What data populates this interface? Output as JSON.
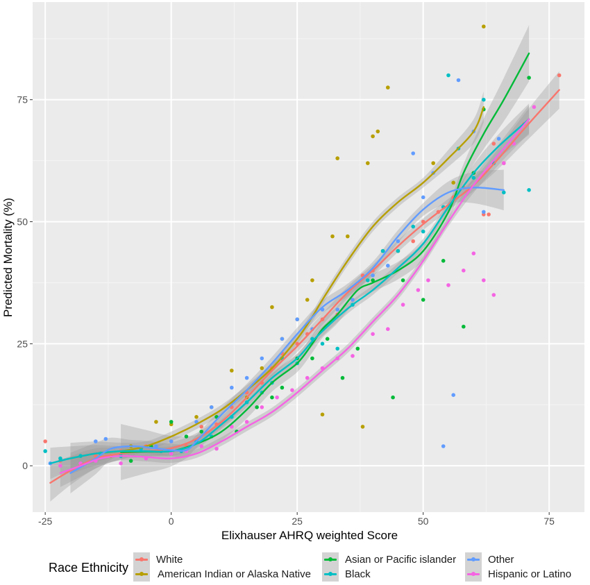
{
  "chart_data": {
    "type": "scatter",
    "subtype": "scatter with loess smoothing lines and confidence bands",
    "title": "",
    "xlabel": "Elixhauser AHRQ weighted Score",
    "ylabel": "Predicted Mortality (%)",
    "xlim": [
      -27.5,
      82
    ],
    "ylim": [
      -9.5,
      95
    ],
    "x_ticks": [
      -25,
      0,
      25,
      50,
      75
    ],
    "x_tick_labels": [
      "-25",
      "0",
      "25",
      "50",
      "75"
    ],
    "y_ticks": [
      0,
      25,
      50,
      75
    ],
    "y_tick_labels": [
      "0",
      "25",
      "50",
      "75"
    ],
    "grid": true,
    "background": "#ebebeb",
    "legend": {
      "title": "Race Ethnicity",
      "position": "bottom"
    },
    "series": [
      {
        "name": "White",
        "color": "#F8766D",
        "smooth": [
          [
            -24,
            -3.5
          ],
          [
            -20,
            -1
          ],
          [
            -15,
            1.5
          ],
          [
            -10,
            2.5
          ],
          [
            -5,
            3
          ],
          [
            0,
            3.6
          ],
          [
            5,
            5.5
          ],
          [
            10,
            9
          ],
          [
            15,
            14
          ],
          [
            20,
            19.5
          ],
          [
            25,
            24.5
          ],
          [
            30,
            30
          ],
          [
            35,
            35.5
          ],
          [
            40,
            40
          ],
          [
            45,
            45
          ],
          [
            50,
            49.5
          ],
          [
            55,
            53.5
          ],
          [
            60,
            57.5
          ],
          [
            65,
            63
          ],
          [
            70,
            69
          ],
          [
            77,
            77
          ]
        ],
        "band": 1.2,
        "points": [
          [
            -25,
            5
          ],
          [
            -22,
            1
          ],
          [
            -15,
            2
          ],
          [
            -10,
            3
          ],
          [
            -5,
            4
          ],
          [
            0,
            5
          ],
          [
            3,
            4
          ],
          [
            6,
            8
          ],
          [
            9,
            8.5
          ],
          [
            12,
            12
          ],
          [
            15,
            15
          ],
          [
            18,
            17
          ],
          [
            20,
            20
          ],
          [
            22,
            23
          ],
          [
            25,
            25
          ],
          [
            27,
            27
          ],
          [
            30,
            30
          ],
          [
            33,
            31
          ],
          [
            36,
            34
          ],
          [
            38,
            39
          ],
          [
            40,
            40
          ],
          [
            42,
            44
          ],
          [
            45,
            44
          ],
          [
            48,
            46
          ],
          [
            50,
            50
          ],
          [
            53,
            52
          ],
          [
            56,
            55
          ],
          [
            58,
            57
          ],
          [
            60,
            60
          ],
          [
            62,
            51.5
          ],
          [
            63,
            51.5
          ],
          [
            64,
            66
          ],
          [
            66,
            62
          ],
          [
            70,
            70
          ],
          [
            77,
            80
          ]
        ]
      },
      {
        "name": "American Indian or Alaska Native",
        "color": "#B79F00",
        "smooth": [
          [
            -20,
            1.5
          ],
          [
            -15,
            2.5
          ],
          [
            -10,
            3
          ],
          [
            -5,
            4
          ],
          [
            0,
            6
          ],
          [
            5,
            8.5
          ],
          [
            10,
            11.5
          ],
          [
            15,
            15.5
          ],
          [
            20,
            20
          ],
          [
            25,
            26
          ],
          [
            28,
            30.5
          ],
          [
            30,
            34
          ],
          [
            35,
            42
          ],
          [
            40,
            49
          ],
          [
            45,
            54
          ],
          [
            50,
            58
          ],
          [
            55,
            63
          ],
          [
            60,
            68.5
          ],
          [
            62,
            73.5
          ]
        ],
        "band": 1.0,
        "points": [
          [
            -12,
            2
          ],
          [
            -8,
            4
          ],
          [
            -3,
            9
          ],
          [
            0,
            8.5
          ],
          [
            5,
            10
          ],
          [
            8,
            12
          ],
          [
            12,
            19.5
          ],
          [
            15,
            14
          ],
          [
            18,
            20
          ],
          [
            20,
            32.5
          ],
          [
            22,
            26
          ],
          [
            25,
            30
          ],
          [
            27,
            34
          ],
          [
            28,
            38
          ],
          [
            30,
            10.5
          ],
          [
            32,
            47
          ],
          [
            33,
            63
          ],
          [
            35,
            47
          ],
          [
            38,
            8
          ],
          [
            39,
            62
          ],
          [
            40,
            67.5
          ],
          [
            41,
            68.5
          ],
          [
            43,
            77.5
          ],
          [
            45,
            44
          ],
          [
            52,
            62
          ],
          [
            56,
            58
          ],
          [
            62,
            90
          ]
        ]
      },
      {
        "name": "Asian or Pacific islander",
        "color": "#00BA38",
        "smooth": [
          [
            -10,
            2.8
          ],
          [
            -5,
            2.9
          ],
          [
            0,
            3
          ],
          [
            5,
            4.5
          ],
          [
            10,
            7
          ],
          [
            15,
            11.5
          ],
          [
            20,
            17
          ],
          [
            25,
            21
          ],
          [
            28,
            25
          ],
          [
            30,
            28
          ],
          [
            33,
            31
          ],
          [
            37,
            36
          ],
          [
            40,
            37.5
          ],
          [
            45,
            40
          ],
          [
            50,
            44
          ],
          [
            55,
            52
          ],
          [
            58,
            60
          ],
          [
            62,
            68
          ],
          [
            66,
            75
          ],
          [
            71,
            84.5
          ]
        ],
        "band": 1.8,
        "points": [
          [
            -8,
            1
          ],
          [
            -4,
            4
          ],
          [
            0,
            9
          ],
          [
            3,
            6
          ],
          [
            6,
            7
          ],
          [
            9,
            10
          ],
          [
            13,
            7
          ],
          [
            17,
            12
          ],
          [
            20,
            14
          ],
          [
            22,
            16
          ],
          [
            25,
            22
          ],
          [
            28,
            22
          ],
          [
            31,
            26
          ],
          [
            34,
            18
          ],
          [
            37,
            24
          ],
          [
            40,
            38
          ],
          [
            42,
            44
          ],
          [
            44,
            14
          ],
          [
            46,
            38
          ],
          [
            50,
            34
          ],
          [
            54,
            42
          ],
          [
            58,
            28.5
          ],
          [
            60,
            60
          ],
          [
            62,
            73
          ],
          [
            71,
            79.5
          ]
        ]
      },
      {
        "name": "Black",
        "color": "#00BFC4",
        "smooth": [
          [
            -24,
            0.5
          ],
          [
            -20,
            1.5
          ],
          [
            -15,
            2.5
          ],
          [
            -10,
            3
          ],
          [
            -5,
            3
          ],
          [
            0,
            3
          ],
          [
            5,
            4.5
          ],
          [
            10,
            8.5
          ],
          [
            15,
            13
          ],
          [
            20,
            18
          ],
          [
            25,
            22
          ],
          [
            28,
            25.5
          ],
          [
            32,
            29.5
          ],
          [
            36,
            33
          ],
          [
            40,
            36
          ],
          [
            45,
            40.5
          ],
          [
            50,
            45.5
          ],
          [
            55,
            53
          ],
          [
            60,
            60
          ],
          [
            65,
            65.5
          ],
          [
            71,
            71
          ]
        ],
        "band": 1.0,
        "points": [
          [
            -25,
            3
          ],
          [
            -22,
            1.5
          ],
          [
            -18,
            2
          ],
          [
            -14,
            2.5
          ],
          [
            -10,
            2
          ],
          [
            -6,
            3.5
          ],
          [
            -2,
            3
          ],
          [
            2,
            3
          ],
          [
            5,
            5
          ],
          [
            8,
            6
          ],
          [
            12,
            10
          ],
          [
            15,
            13
          ],
          [
            18,
            15
          ],
          [
            20,
            17
          ],
          [
            22,
            22
          ],
          [
            25,
            21
          ],
          [
            28,
            26
          ],
          [
            30,
            25
          ],
          [
            33,
            24
          ],
          [
            36,
            33
          ],
          [
            39,
            38
          ],
          [
            42,
            44
          ],
          [
            45,
            44
          ],
          [
            48,
            49
          ],
          [
            50,
            48
          ],
          [
            54,
            53
          ],
          [
            55,
            80
          ],
          [
            57,
            65
          ],
          [
            60,
            59
          ],
          [
            62,
            75
          ],
          [
            64,
            62
          ],
          [
            66,
            56
          ],
          [
            71,
            56.5
          ]
        ]
      },
      {
        "name": "Other",
        "color": "#619CFF",
        "smooth": [
          [
            -20,
            -1.5
          ],
          [
            -15,
            1.5
          ],
          [
            -12,
            3.5
          ],
          [
            -8,
            4
          ],
          [
            -5,
            3.8
          ],
          [
            0,
            3.2
          ],
          [
            3,
            3.2
          ],
          [
            5,
            5
          ],
          [
            10,
            10.5
          ],
          [
            15,
            15.5
          ],
          [
            20,
            21
          ],
          [
            25,
            27
          ],
          [
            30,
            32.5
          ],
          [
            35,
            36
          ],
          [
            40,
            40.5
          ],
          [
            45,
            47
          ],
          [
            50,
            52.5
          ],
          [
            55,
            56
          ],
          [
            60,
            57
          ],
          [
            66,
            56.5
          ]
        ],
        "band": 1.3,
        "points": [
          [
            -24,
            0.5
          ],
          [
            -15,
            5
          ],
          [
            -13,
            5.5
          ],
          [
            -8,
            3
          ],
          [
            -3,
            4
          ],
          [
            0,
            5
          ],
          [
            5,
            9
          ],
          [
            8,
            12
          ],
          [
            12,
            16
          ],
          [
            15,
            18
          ],
          [
            18,
            22
          ],
          [
            22,
            26
          ],
          [
            25,
            30
          ],
          [
            28,
            28
          ],
          [
            30,
            32
          ],
          [
            33,
            32
          ],
          [
            36,
            34
          ],
          [
            40,
            39
          ],
          [
            43,
            41
          ],
          [
            45,
            46
          ],
          [
            48,
            64
          ],
          [
            50,
            55
          ],
          [
            52,
            60
          ],
          [
            54,
            4
          ],
          [
            56,
            14.5
          ],
          [
            57,
            79
          ],
          [
            60,
            68.5
          ],
          [
            62,
            52
          ],
          [
            65,
            67
          ]
        ]
      },
      {
        "name": "Hispanic or Latino",
        "color": "#F564E3",
        "smooth": [
          [
            -22,
            -1.5
          ],
          [
            -18,
            0
          ],
          [
            -14,
            1.5
          ],
          [
            -10,
            2
          ],
          [
            -5,
            1.8
          ],
          [
            0,
            1.5
          ],
          [
            5,
            2.5
          ],
          [
            10,
            5
          ],
          [
            15,
            8
          ],
          [
            20,
            11
          ],
          [
            25,
            15
          ],
          [
            30,
            19.5
          ],
          [
            35,
            24
          ],
          [
            40,
            29.5
          ],
          [
            45,
            35
          ],
          [
            50,
            42
          ],
          [
            55,
            50
          ],
          [
            60,
            57.5
          ],
          [
            66,
            65
          ],
          [
            71,
            71
          ]
        ],
        "band": 0.9,
        "points": [
          [
            -22,
            0
          ],
          [
            -18,
            0.5
          ],
          [
            -15,
            1
          ],
          [
            -10,
            0.5
          ],
          [
            -5,
            1.5
          ],
          [
            0,
            2.5
          ],
          [
            3,
            3
          ],
          [
            6,
            4
          ],
          [
            9,
            3.5
          ],
          [
            12,
            8
          ],
          [
            15,
            9
          ],
          [
            18,
            12
          ],
          [
            21,
            14
          ],
          [
            24,
            15.5
          ],
          [
            27,
            18
          ],
          [
            30,
            20
          ],
          [
            33,
            22
          ],
          [
            36,
            22.5
          ],
          [
            40,
            27
          ],
          [
            43,
            28
          ],
          [
            46,
            33
          ],
          [
            49,
            36
          ],
          [
            51,
            38
          ],
          [
            55,
            37
          ],
          [
            58,
            40
          ],
          [
            60,
            43.5
          ],
          [
            62,
            38
          ],
          [
            64,
            35
          ],
          [
            66,
            62
          ],
          [
            68,
            66
          ],
          [
            72,
            73.5
          ]
        ]
      }
    ]
  }
}
